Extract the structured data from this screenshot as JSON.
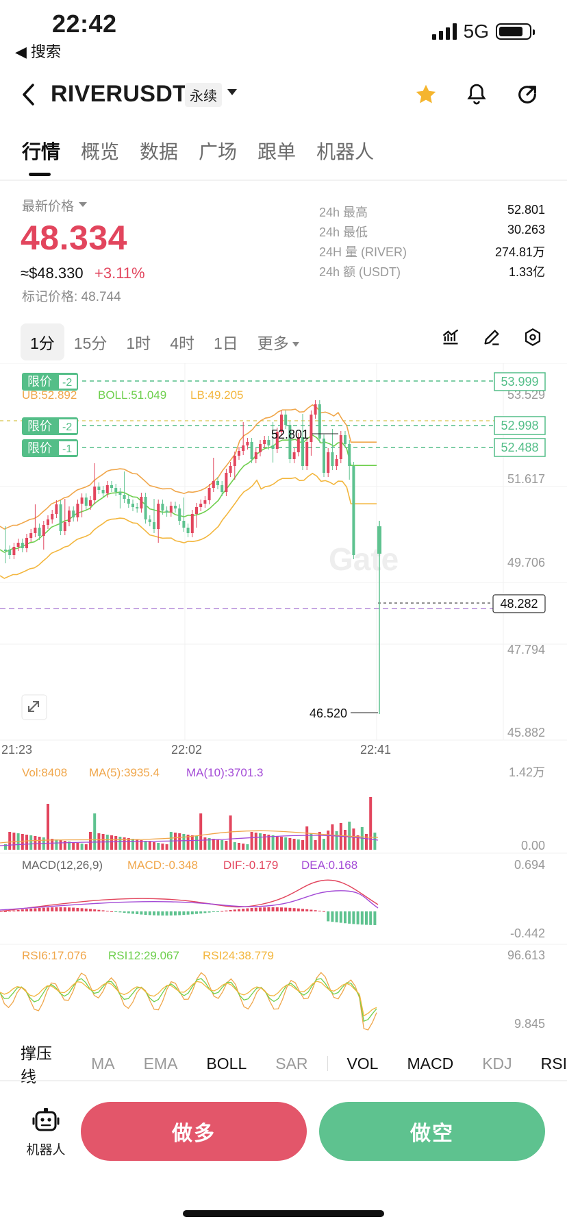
{
  "status": {
    "time": "22:42",
    "back_app": "◀ 搜索",
    "network": "5G"
  },
  "header": {
    "symbol": "RIVERUSDT",
    "contract_tag": "永续"
  },
  "tabs": [
    "行情",
    "概览",
    "数据",
    "广场",
    "跟单",
    "机器人"
  ],
  "ticker": {
    "latest_label": "最新价格",
    "price": "48.334",
    "usd_price": "≈$48.330",
    "change_pct": "+3.11%",
    "mark_price": "标记价格: 48.744",
    "stats": [
      {
        "label": "24h  最高",
        "value": "52.801"
      },
      {
        "label": "24h  最低",
        "value": "30.263"
      },
      {
        "label": "24H  量 (RIVER)",
        "value": "274.81万"
      },
      {
        "label": "24h  额 (USDT)",
        "value": "1.33亿"
      }
    ]
  },
  "timeframes": [
    "1分",
    "15分",
    "1时",
    "4时",
    "1日",
    "更多"
  ],
  "active_timeframe": "1分",
  "chart": {
    "order_tag_label": "限价",
    "orders": [
      {
        "qty": "-2",
        "price": "53.999"
      },
      {
        "qty": "-2",
        "price": "52.998"
      },
      {
        "qty": "-1",
        "price": "52.488"
      }
    ],
    "boll_legend": {
      "ub": "UB:52.892",
      "boll": "BOLL:51.049",
      "lb": "LB:49.205"
    },
    "price_axis": [
      "53.529",
      "51.617",
      "49.706",
      "47.794",
      "45.882"
    ],
    "current_price_tag": "48.282",
    "high_label": "52.801",
    "low_label": "46.520",
    "time_axis": [
      "21:23",
      "22:02",
      "22:41"
    ],
    "vol": {
      "vol": "Vol:8408",
      "ma5": "MA(5):3935.4",
      "ma10": "MA(10):3701.3",
      "axis_top": "1.42万",
      "axis_bottom": "0.00"
    },
    "macd": {
      "label": "MACD(12,26,9)",
      "macd": "MACD:-0.348",
      "dif": "DIF:-0.179",
      "dea": "DEA:0.168",
      "axis_top": "0.694",
      "axis_bottom": "-0.442"
    },
    "rsi": {
      "rsi6": "RSI6:17.076",
      "rsi12": "RSI12:29.067",
      "rsi24": "RSI24:38.779",
      "axis_top": "96.613",
      "axis_bottom": "9.845"
    },
    "watermark": "Gate"
  },
  "indicator_tabs": [
    "撑压线",
    "MA",
    "EMA",
    "BOLL",
    "SAR",
    "VOL",
    "MACD",
    "KDJ",
    "RSI"
  ],
  "bottom": {
    "robot_label": "机器人",
    "long_label": "做多",
    "short_label": "做空"
  },
  "colors": {
    "up": "#e2455d",
    "down": "#5ec28f",
    "boll_ub": "#f0a64a",
    "boll_mid": "#6ecf4d",
    "boll_lb": "#f3b63d"
  }
}
